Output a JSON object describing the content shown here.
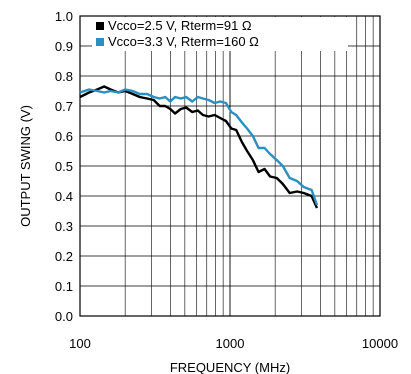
{
  "chart_data": {
    "type": "line",
    "xlabel": "FREQUENCY (MHz)",
    "ylabel": "OUTPUT SWING (V)",
    "x_scale": "log",
    "xlim": [
      100,
      10000
    ],
    "ylim": [
      0.0,
      1.0
    ],
    "x_ticks": [
      100,
      1000,
      10000
    ],
    "x_tick_labels": [
      "100",
      "1000",
      "10000"
    ],
    "y_ticks": [
      0.0,
      0.1,
      0.2,
      0.3,
      0.4,
      0.5,
      0.6,
      0.7,
      0.8,
      0.9,
      1.0
    ],
    "y_tick_labels": [
      "0.0",
      "0.1",
      "0.2",
      "0.3",
      "0.4",
      "0.5",
      "0.6",
      "0.7",
      "0.8",
      "0.9",
      "1.0"
    ],
    "grid": true,
    "legend_position": "top-left",
    "series": [
      {
        "name": "Vcco=2.5 V, Rterm=91 Ω",
        "color": "#000000",
        "x": [
          100,
          115,
          130,
          145,
          160,
          180,
          200,
          225,
          250,
          280,
          310,
          340,
          370,
          400,
          430,
          470,
          510,
          560,
          610,
          660,
          720,
          790,
          860,
          940,
          1020,
          1100,
          1200,
          1300,
          1420,
          1550,
          1700,
          1850,
          2050,
          2250,
          2500,
          2800,
          3100,
          3500,
          3800
        ],
        "y": [
          0.73,
          0.745,
          0.755,
          0.765,
          0.755,
          0.745,
          0.75,
          0.74,
          0.73,
          0.725,
          0.72,
          0.7,
          0.7,
          0.69,
          0.675,
          0.69,
          0.695,
          0.68,
          0.685,
          0.67,
          0.665,
          0.67,
          0.66,
          0.65,
          0.625,
          0.62,
          0.58,
          0.55,
          0.52,
          0.48,
          0.49,
          0.465,
          0.46,
          0.44,
          0.41,
          0.415,
          0.41,
          0.4,
          0.36
        ]
      },
      {
        "name": "Vcco=3.3 V, Rterm=160 Ω",
        "color": "#2a8fc1",
        "x": [
          100,
          115,
          130,
          145,
          160,
          180,
          200,
          225,
          250,
          280,
          310,
          340,
          370,
          400,
          430,
          470,
          510,
          560,
          610,
          660,
          720,
          790,
          860,
          940,
          1020,
          1100,
          1200,
          1300,
          1420,
          1550,
          1700,
          1850,
          2050,
          2250,
          2500,
          2800,
          3100,
          3500,
          3800
        ],
        "y": [
          0.745,
          0.755,
          0.75,
          0.745,
          0.75,
          0.745,
          0.755,
          0.75,
          0.74,
          0.74,
          0.73,
          0.725,
          0.73,
          0.715,
          0.73,
          0.725,
          0.73,
          0.715,
          0.73,
          0.725,
          0.72,
          0.71,
          0.715,
          0.71,
          0.68,
          0.67,
          0.645,
          0.625,
          0.6,
          0.56,
          0.56,
          0.54,
          0.52,
          0.5,
          0.46,
          0.45,
          0.43,
          0.42,
          0.37
        ]
      }
    ]
  }
}
